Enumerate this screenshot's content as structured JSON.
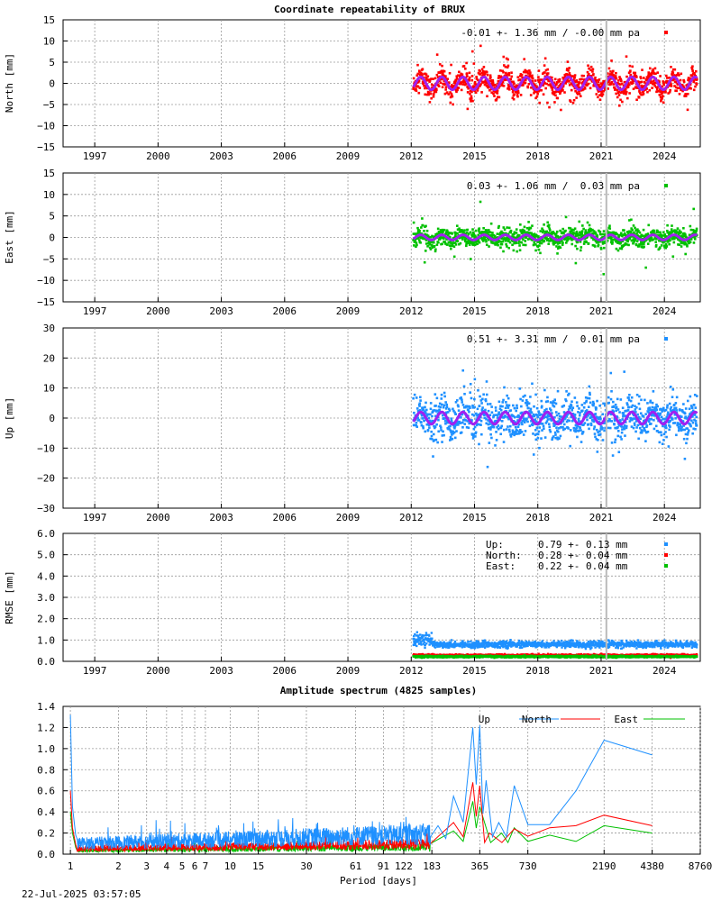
{
  "title": "Coordinate repeatability of BRUX",
  "timestamp": "22-Jul-2025 03:57:05",
  "colors": {
    "north": "#ff0000",
    "east": "#00c000",
    "up": "#1e90ff",
    "model": "#a020f0",
    "marker": "#bbbbbb"
  },
  "chart_data": [
    {
      "type": "scatter",
      "id": "north",
      "ylabel": "North [mm]",
      "ylim": [
        -15,
        15
      ],
      "yticks": [
        -15,
        -10,
        -5,
        0,
        5,
        10,
        15
      ],
      "xlim": [
        1995.5,
        2025.7
      ],
      "xticks": [
        1997,
        2000,
        2003,
        2006,
        2009,
        2012,
        2015,
        2018,
        2021,
        2024
      ],
      "data_range": [
        2012.1,
        2025.55
      ],
      "annual_amplitude": 1.5,
      "spread": 1.36,
      "legend": "-0.01 +- 1.36 mm / -0.00 mm pa",
      "marker_x": 2021.25
    },
    {
      "type": "scatter",
      "id": "east",
      "ylabel": "East [mm]",
      "ylim": [
        -15,
        15
      ],
      "yticks": [
        -15,
        -10,
        -5,
        0,
        5,
        10,
        15
      ],
      "xlim": [
        1995.5,
        2025.7
      ],
      "xticks": [
        1997,
        2000,
        2003,
        2006,
        2009,
        2012,
        2015,
        2018,
        2021,
        2024
      ],
      "data_range": [
        2012.1,
        2025.55
      ],
      "annual_amplitude": 0.6,
      "spread": 1.06,
      "legend": " 0.03 +- 1.06 mm /  0.03 mm pa",
      "marker_x": 2021.25
    },
    {
      "type": "scatter",
      "id": "up",
      "ylabel": "Up [mm]",
      "ylim": [
        -30,
        30
      ],
      "yticks": [
        -30,
        -20,
        -10,
        0,
        10,
        20,
        30
      ],
      "xlim": [
        1995.5,
        2025.7
      ],
      "xticks": [
        1997,
        2000,
        2003,
        2006,
        2009,
        2012,
        2015,
        2018,
        2021,
        2024
      ],
      "data_range": [
        2012.1,
        2025.55
      ],
      "annual_amplitude": 2.0,
      "spread": 3.31,
      "legend": " 0.51 +- 3.31 mm /  0.01 mm pa",
      "marker_x": 2021.25
    },
    {
      "type": "scatter",
      "id": "rmse",
      "ylabel": "RMSE [mm]",
      "ylim": [
        0,
        6
      ],
      "yticks": [
        "0.0",
        "1.0",
        "2.0",
        "3.0",
        "4.0",
        "5.0",
        "6.0"
      ],
      "xlim": [
        1995.5,
        2025.7
      ],
      "xticks": [
        1997,
        2000,
        2003,
        2006,
        2009,
        2012,
        2015,
        2018,
        2021,
        2024
      ],
      "data_range": [
        2012.1,
        2025.55
      ],
      "series": [
        {
          "name": "Up:",
          "value": "0.79 +- 0.13 mm",
          "mean": 0.79,
          "color": "up"
        },
        {
          "name": "North:",
          "value": "0.28 +- 0.04 mm",
          "mean": 0.28,
          "color": "north"
        },
        {
          "name": "East:",
          "value": "0.22 +- 0.04 mm",
          "mean": 0.22,
          "color": "east"
        }
      ],
      "marker_x": 2021.25
    },
    {
      "type": "line",
      "id": "spectrum",
      "title": "Amplitude spectrum (4825 samples)",
      "xlabel": "Period [days]",
      "xscale": "log",
      "xlim": [
        0.9,
        8760
      ],
      "ylim": [
        0,
        1.4
      ],
      "yticks": [
        "0.0",
        "0.2",
        "0.4",
        "0.6",
        "0.8",
        "1.0",
        "1.2",
        "1.4"
      ],
      "xticks": [
        1,
        2,
        3,
        4,
        5,
        6,
        7,
        10,
        15,
        30,
        61,
        91,
        122,
        183,
        365,
        730,
        2190,
        4380,
        8760
      ],
      "series": [
        {
          "name": "Up",
          "color": "up",
          "peaks": [
            [
              1,
              1.32
            ],
            [
              1.05,
              0.45
            ],
            [
              1.3,
              0.18
            ],
            [
              200,
              0.27
            ],
            [
              250,
              0.55
            ],
            [
              330,
              1.2
            ],
            [
              365,
              1.22
            ],
            [
              400,
              0.7
            ],
            [
              480,
              0.3
            ],
            [
              600,
              0.65
            ],
            [
              730,
              0.28
            ],
            [
              1000,
              0.28
            ],
            [
              1460,
              0.6
            ],
            [
              2190,
              1.08
            ],
            [
              4380,
              0.94
            ]
          ]
        },
        {
          "name": "North",
          "color": "north",
          "peaks": [
            [
              1,
              0.6
            ],
            [
              1.05,
              0.25
            ],
            [
              250,
              0.3
            ],
            [
              330,
              0.68
            ],
            [
              365,
              0.65
            ],
            [
              420,
              0.2
            ],
            [
              600,
              0.24
            ],
            [
              730,
              0.17
            ],
            [
              1000,
              0.25
            ],
            [
              1460,
              0.27
            ],
            [
              2190,
              0.37
            ],
            [
              4380,
              0.27
            ]
          ]
        },
        {
          "name": "East",
          "color": "east",
          "peaks": [
            [
              1,
              0.4
            ],
            [
              1.05,
              0.2
            ],
            [
              250,
              0.22
            ],
            [
              330,
              0.5
            ],
            [
              365,
              0.45
            ],
            [
              500,
              0.2
            ],
            [
              600,
              0.25
            ],
            [
              730,
              0.12
            ],
            [
              1000,
              0.18
            ],
            [
              1460,
              0.12
            ],
            [
              2190,
              0.27
            ],
            [
              4380,
              0.2
            ]
          ]
        }
      ]
    }
  ]
}
